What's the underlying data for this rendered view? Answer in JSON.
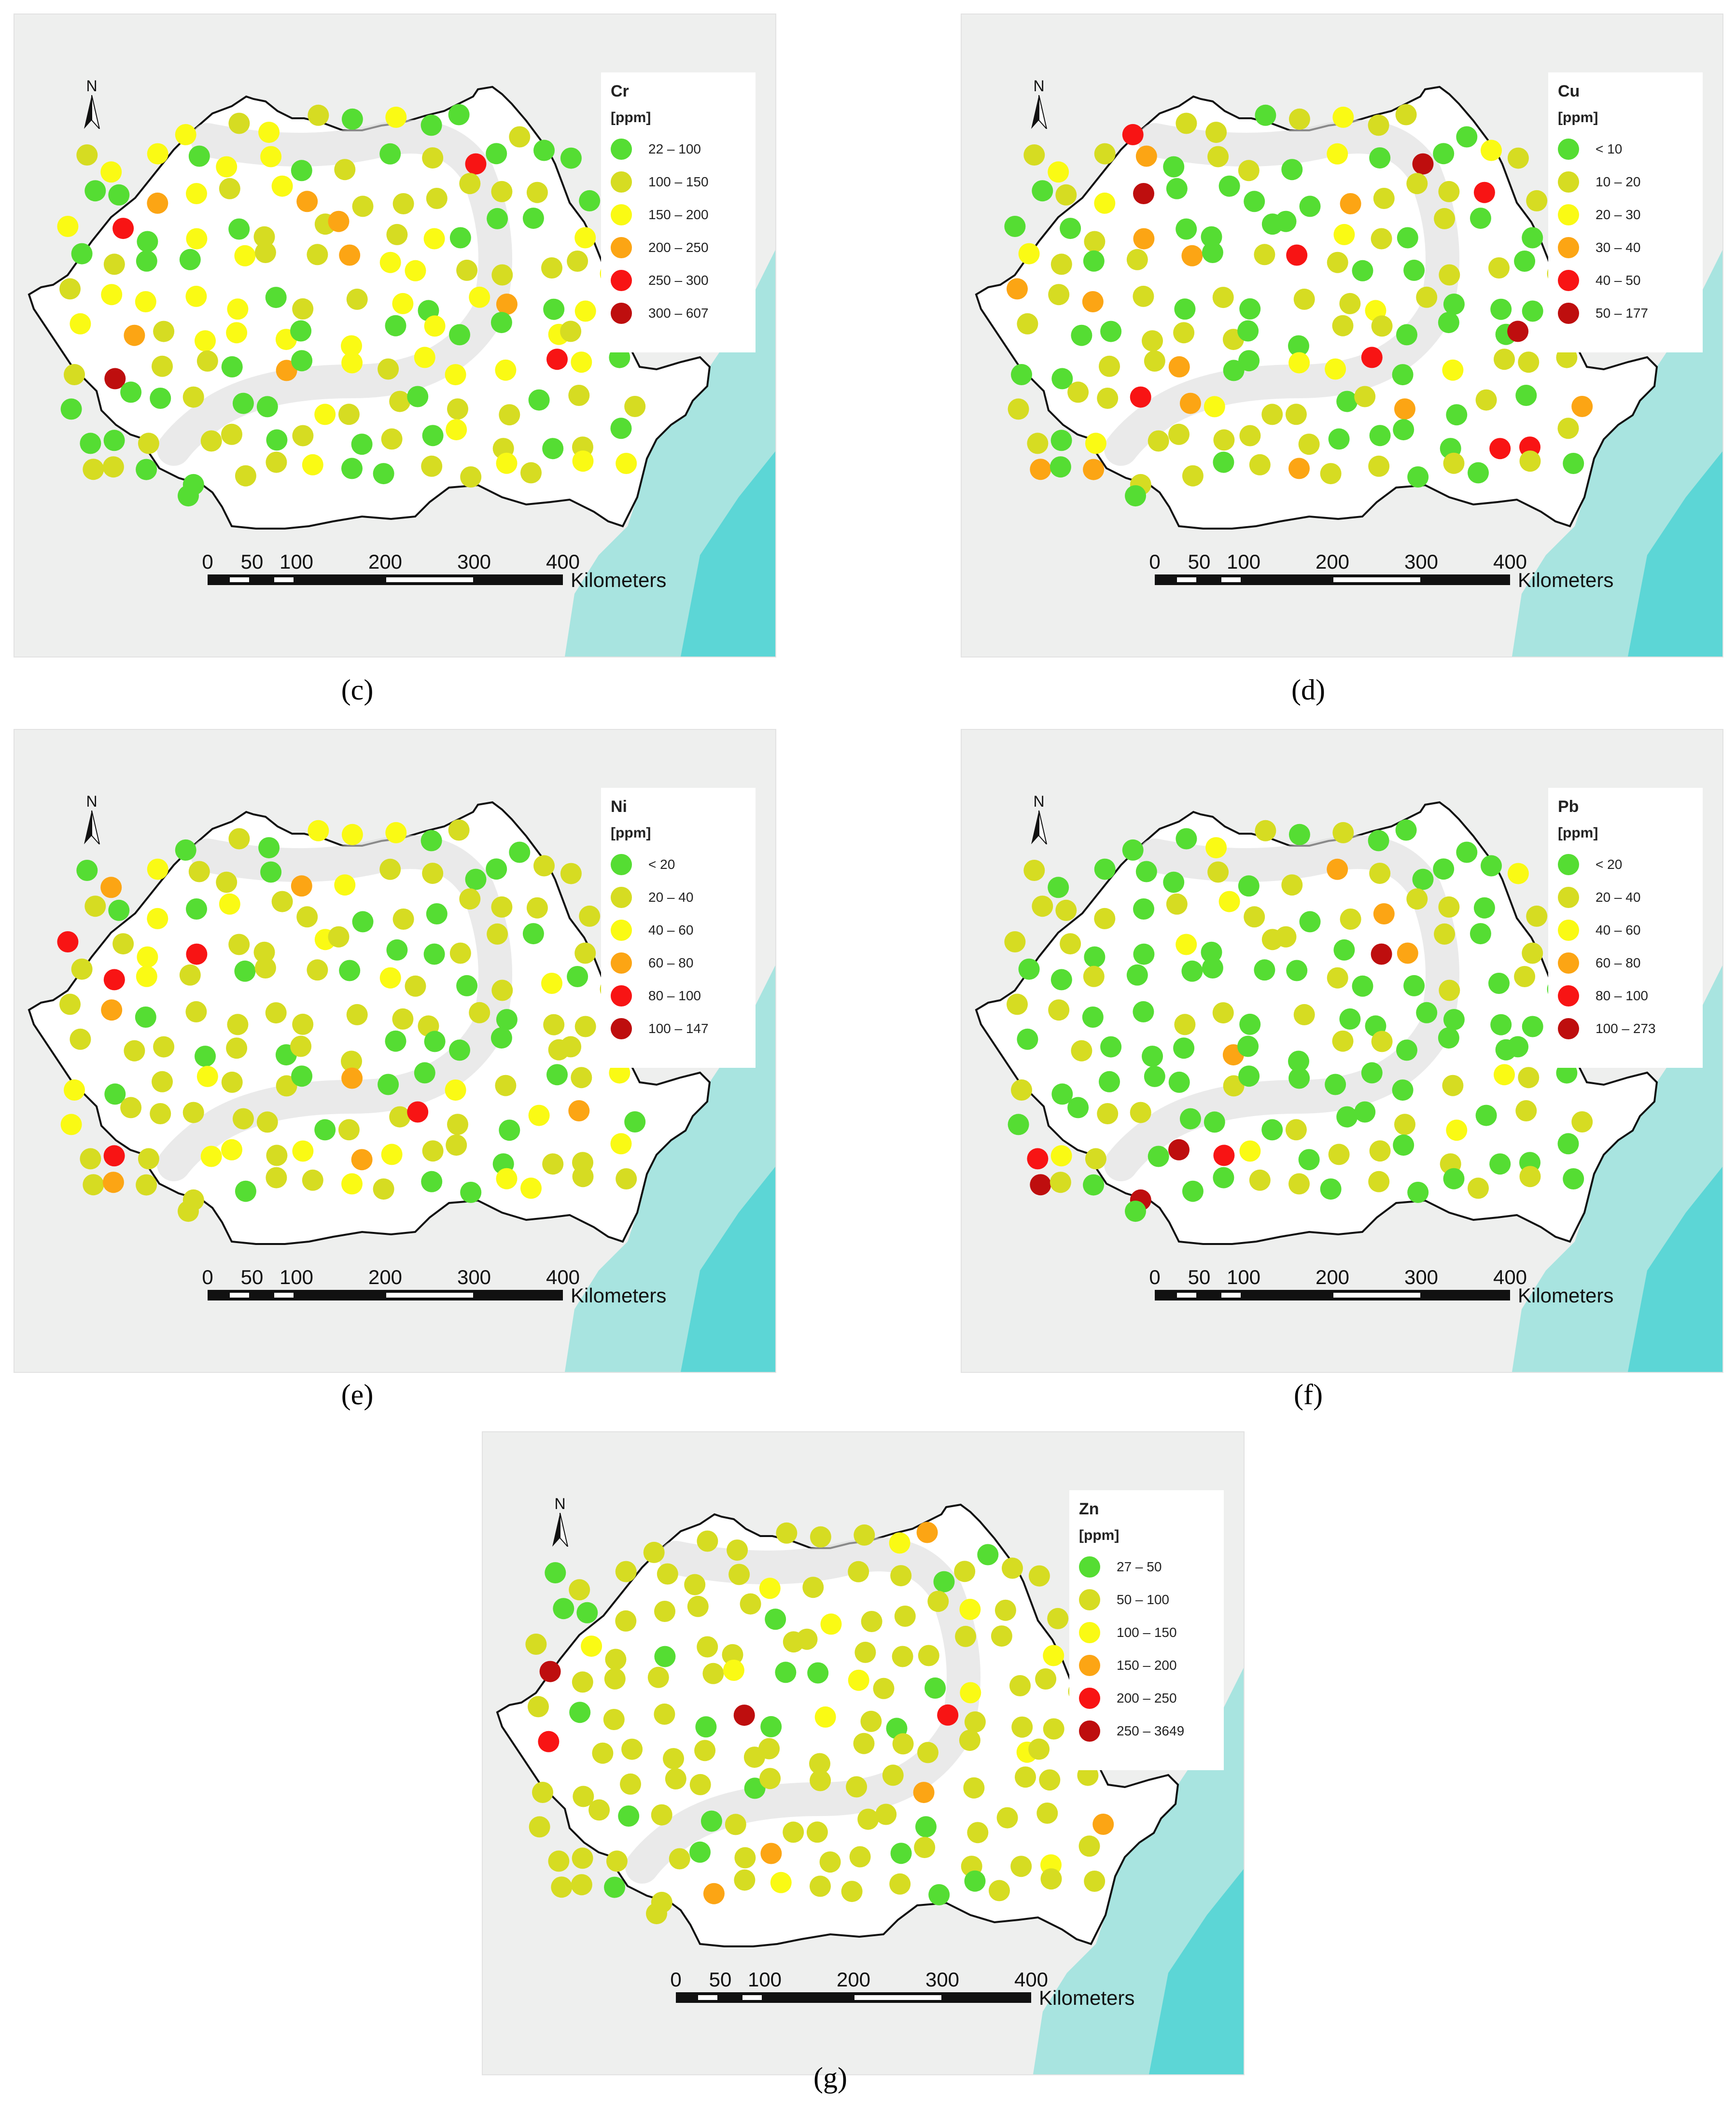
{
  "scale": {
    "ticks": [
      "0",
      "50",
      "100",
      "200",
      "300",
      "400"
    ],
    "unit": "Kilometers"
  },
  "north_label": "N",
  "colors": {
    "class1": "#55dd33",
    "class2": "#d6dc22",
    "class3": "#fafa14",
    "class4": "#fca514",
    "class5": "#f81414",
    "class6": "#be0e0e",
    "sea": "#a8e4e0",
    "sea_deep": "#5cd6d6"
  },
  "panels": [
    {
      "caption": "(c)",
      "letter": "c",
      "element": "Cr",
      "unit": "[ppm]",
      "classes": [
        "22 – 100",
        "100 – 150",
        "150 – 200",
        "200 – 250",
        "250 – 300",
        "300 – 607"
      ]
    },
    {
      "caption": "(d)",
      "letter": "d",
      "element": "Cu",
      "unit": "[ppm]",
      "classes": [
        "< 10",
        "10 – 20",
        "20 – 30",
        "30 – 40",
        "40 – 50",
        "50 – 177"
      ]
    },
    {
      "caption": "(e)",
      "letter": "e",
      "element": "Ni",
      "unit": "[ppm]",
      "classes": [
        "< 20",
        "20 – 40",
        "40 – 60",
        "60 – 80",
        "80 – 100",
        "100 – 147"
      ]
    },
    {
      "caption": "(f)",
      "letter": "f",
      "element": "Pb",
      "unit": "[ppm]",
      "classes": [
        "< 20",
        "20 – 40",
        "40 – 60",
        "60 – 80",
        "80 – 100",
        "100 – 273"
      ]
    },
    {
      "caption": "(g)",
      "letter": "g",
      "element": "Zn",
      "unit": "[ppm]",
      "classes": [
        "27 – 50",
        "50 – 100",
        "100 – 150",
        "150 – 200",
        "200 – 250",
        "250 – 3649"
      ]
    }
  ]
}
